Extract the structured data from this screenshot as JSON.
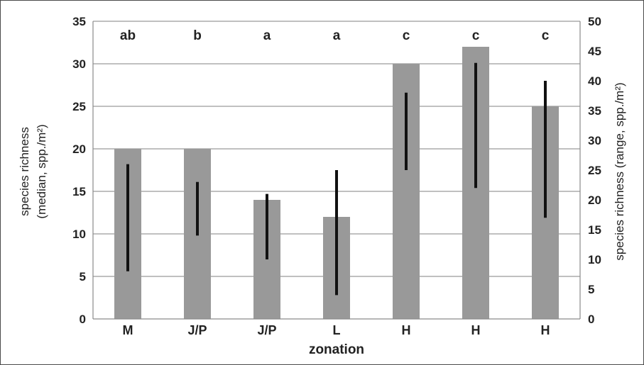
{
  "chart_data": {
    "type": "bar",
    "xlabel": "zonation",
    "ylabel_left": [
      "species richness",
      "(median, spp./m²)"
    ],
    "ylabel_right": "species richness (range, spp./m²)",
    "categories": [
      "M",
      "J/P",
      "J/P",
      "L",
      "H",
      "H",
      "H"
    ],
    "significance_letters": [
      "ab",
      "b",
      "a",
      "a",
      "c",
      "c",
      "c"
    ],
    "ylim_left": [
      0,
      35
    ],
    "yticks_left": [
      0,
      5,
      10,
      15,
      20,
      25,
      30,
      35
    ],
    "ylim_right": [
      0,
      50
    ],
    "yticks_right": [
      0,
      5,
      10,
      15,
      20,
      25,
      30,
      35,
      40,
      45,
      50
    ],
    "grid": true,
    "series": [
      {
        "values": [
          20,
          20,
          14,
          12,
          30,
          32,
          25
        ],
        "axis": "left",
        "color": "#999999"
      },
      {
        "axis": "right",
        "low": [
          8,
          14,
          10,
          4,
          25,
          22,
          17
        ],
        "high": [
          26,
          23,
          21,
          25,
          38,
          43,
          40
        ],
        "color": "#111111"
      }
    ]
  }
}
